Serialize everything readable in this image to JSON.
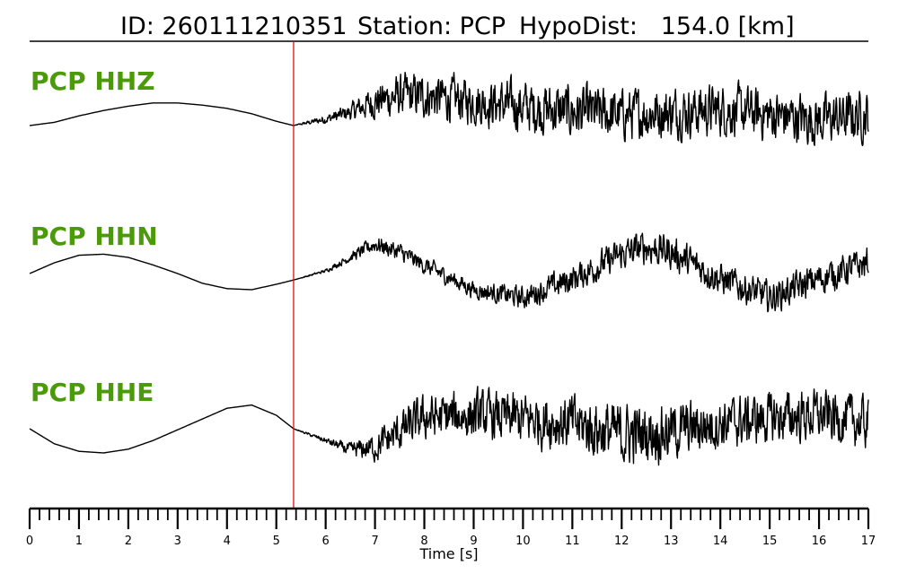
{
  "header": {
    "event_id": "ID: 260111210351",
    "station": "Station: PCP",
    "hypodist": "HypoDist:   154.0 [km]"
  },
  "colors": {
    "label": "#4a9a0a",
    "pick_line": "#e01010",
    "trace": "#000000"
  },
  "chart_data": {
    "type": "line",
    "xlabel": "Time [s]",
    "xlim": [
      0,
      17
    ],
    "x_ticks": [
      0,
      1,
      2,
      3,
      4,
      5,
      6,
      7,
      8,
      9,
      10,
      11,
      12,
      13,
      14,
      15,
      16,
      17
    ],
    "minor_tick_step": 0.2,
    "pick_time": 5.35,
    "grid": false,
    "series": [
      {
        "name": "PCP HHZ",
        "x": [
          0.0,
          0.5,
          1.0,
          1.5,
          2.0,
          2.5,
          3.0,
          3.5,
          4.0,
          4.5,
          5.0,
          5.35,
          6.0,
          6.5,
          7.0,
          7.5,
          8.0,
          9.0,
          10.0,
          11.0,
          12.0,
          13.0,
          14.0,
          15.0,
          16.0,
          17.0
        ],
        "trend": [
          0.0,
          0.06,
          0.18,
          0.28,
          0.36,
          0.42,
          0.42,
          0.38,
          0.32,
          0.22,
          0.08,
          0.0,
          0.12,
          0.25,
          0.45,
          0.55,
          0.55,
          0.45,
          0.35,
          0.25,
          0.2,
          0.25,
          0.3,
          0.2,
          0.1,
          0.2
        ],
        "noise_amp": [
          0,
          0,
          0,
          0,
          0,
          0,
          0,
          0,
          0,
          0,
          0,
          0,
          0.08,
          0.15,
          0.3,
          0.38,
          0.4,
          0.4,
          0.45,
          0.48,
          0.45,
          0.45,
          0.45,
          0.45,
          0.45,
          0.45
        ]
      },
      {
        "name": "PCP HHN",
        "x": [
          0.0,
          0.5,
          1.0,
          1.5,
          2.0,
          2.5,
          3.0,
          3.5,
          4.0,
          4.5,
          5.0,
          5.35,
          6.0,
          6.5,
          7.0,
          7.5,
          8.0,
          9.0,
          10.0,
          11.0,
          12.0,
          12.5,
          13.0,
          14.0,
          15.0,
          16.0,
          17.0
        ],
        "trend": [
          0.0,
          0.2,
          0.34,
          0.36,
          0.3,
          0.16,
          0.0,
          -0.18,
          -0.28,
          -0.3,
          -0.2,
          -0.12,
          0.05,
          0.3,
          0.55,
          0.4,
          0.15,
          -0.3,
          -0.45,
          -0.1,
          0.35,
          0.5,
          0.4,
          -0.1,
          -0.45,
          -0.1,
          0.2
        ],
        "noise_amp": [
          0,
          0,
          0,
          0,
          0,
          0,
          0,
          0,
          0,
          0,
          0,
          0,
          0.03,
          0.08,
          0.15,
          0.16,
          0.15,
          0.15,
          0.2,
          0.25,
          0.28,
          0.3,
          0.3,
          0.28,
          0.28,
          0.28,
          0.28
        ]
      },
      {
        "name": "PCP HHE",
        "x": [
          0.0,
          0.5,
          1.0,
          1.5,
          2.0,
          2.5,
          3.0,
          3.5,
          4.0,
          4.5,
          5.0,
          5.35,
          6.0,
          6.5,
          7.0,
          7.5,
          8.0,
          9.0,
          10.0,
          11.0,
          12.0,
          13.0,
          14.0,
          15.0,
          16.0,
          17.0
        ],
        "trend": [
          0.0,
          -0.28,
          -0.42,
          -0.45,
          -0.38,
          -0.22,
          -0.02,
          0.18,
          0.38,
          0.44,
          0.25,
          0.0,
          -0.22,
          -0.4,
          -0.35,
          -0.05,
          0.2,
          0.25,
          0.18,
          0.1,
          -0.12,
          -0.05,
          0.1,
          0.2,
          0.25,
          0.1
        ],
        "noise_amp": [
          0,
          0,
          0,
          0,
          0,
          0,
          0,
          0,
          0,
          0,
          0,
          0,
          0.05,
          0.12,
          0.25,
          0.35,
          0.4,
          0.42,
          0.45,
          0.5,
          0.55,
          0.5,
          0.45,
          0.45,
          0.45,
          0.45
        ]
      }
    ]
  }
}
